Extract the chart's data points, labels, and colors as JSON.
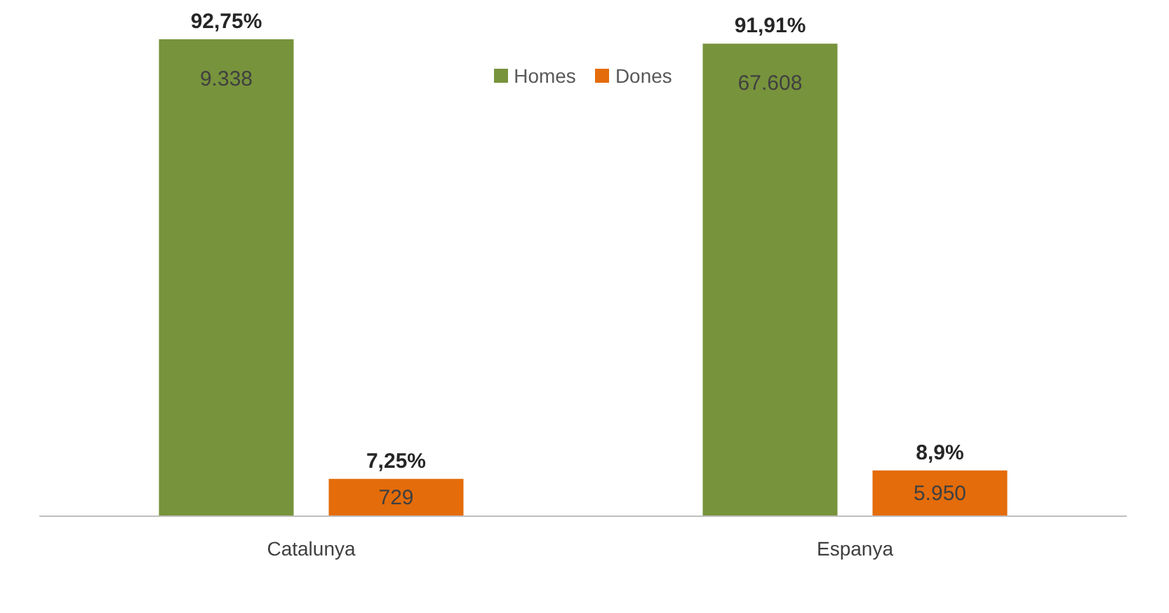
{
  "chart_data": {
    "type": "bar",
    "categories": [
      "Catalunya",
      "Espanya"
    ],
    "series": [
      {
        "name": "Homes",
        "color": "#77933c",
        "values": [
          92.75,
          91.91
        ],
        "value_labels": [
          "92,75%",
          "91,91%"
        ]
      },
      {
        "name": "Dones",
        "color": "#e46c0a",
        "values": [
          7.25,
          8.9
        ],
        "value_labels": [
          "7,25%",
          "8,9%"
        ]
      }
    ],
    "annotations": [
      "9.338",
      "729",
      "67.608",
      "5.950"
    ],
    "legend": "top",
    "grid": false,
    "tick_labels": "x"
  }
}
